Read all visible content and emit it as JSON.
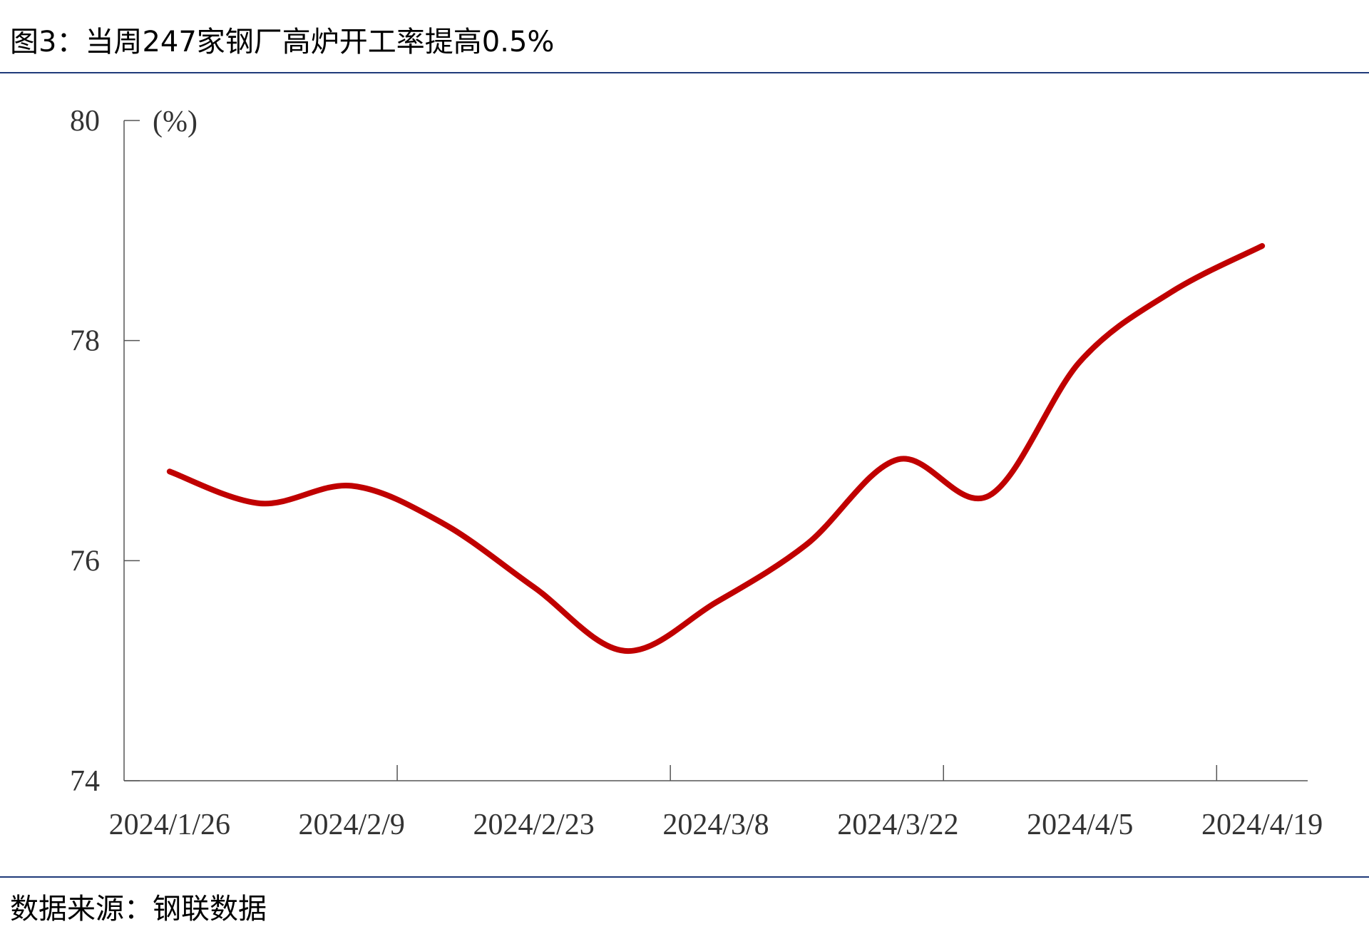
{
  "chart_data": {
    "type": "line",
    "title": "图3：当周247家钢厂高炉开工率提高0.5%",
    "y_label": "(%)",
    "source": "数据来源：钢联数据",
    "categories": [
      "2024/1/26",
      null,
      "2024/2/9",
      null,
      "2024/2/23",
      null,
      "2024/3/8",
      null,
      "2024/3/22",
      null,
      "2024/4/5",
      null,
      "2024/4/19"
    ],
    "series": [
      {
        "name": "高炉开工率",
        "color": "#c00000",
        "values": [
          76.81,
          76.52,
          76.68,
          76.34,
          75.76,
          75.18,
          75.62,
          76.15,
          76.92,
          76.59,
          77.81,
          78.44,
          78.86
        ]
      }
    ],
    "ylim": [
      74,
      80
    ],
    "yticks": [
      74,
      76,
      78,
      80
    ],
    "grid": false
  }
}
